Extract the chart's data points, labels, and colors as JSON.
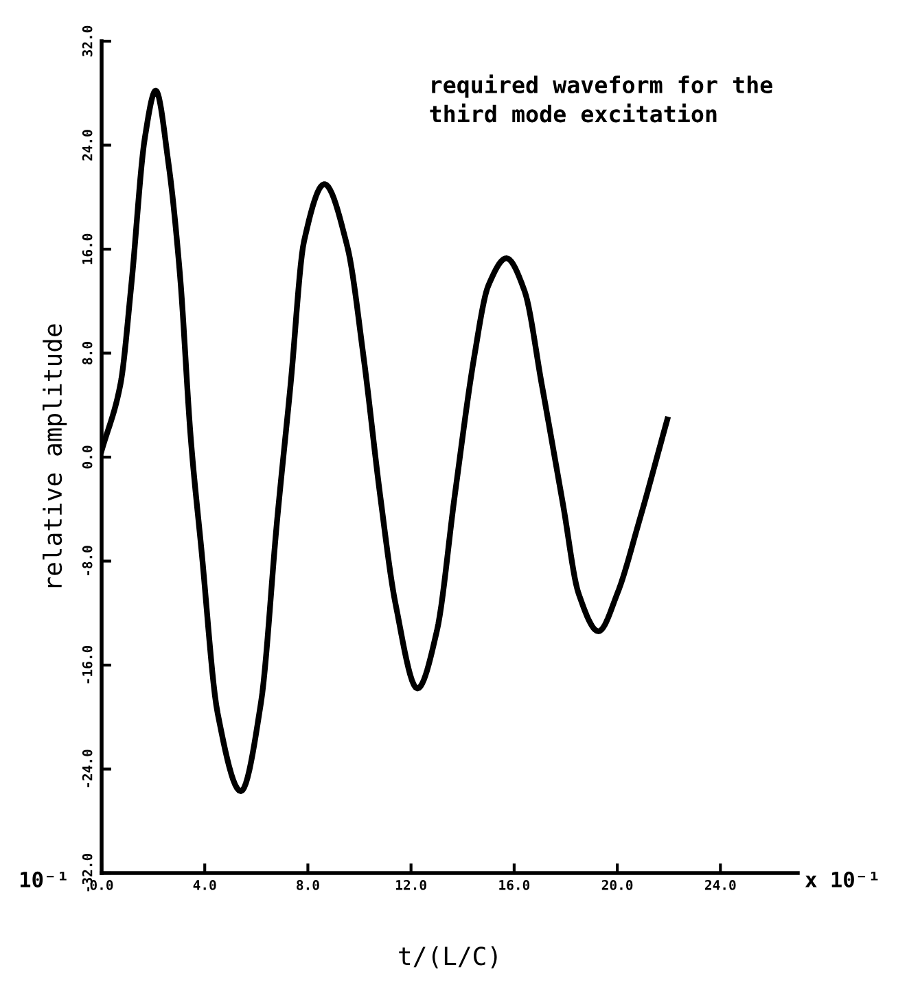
{
  "chart_data": {
    "type": "line",
    "xlabel": "t/(L/C)",
    "ylabel": "relative amplitude",
    "annotations": [
      "required waveform for the\nthird mode excitation",
      "x 10⁻¹",
      "10⁻¹"
    ],
    "x": [
      0,
      0.73,
      1.15,
      1.68,
      2.1,
      2.6,
      3.04,
      3.46,
      3.87,
      4.5,
      5.4,
      6.18,
      6.8,
      7.33,
      7.85,
      8.64,
      9.53,
      10.16,
      10.8,
      11.4,
      12.25,
      13.0,
      13.7,
      14.45,
      15.0,
      15.7,
      16.4,
      17.07,
      17.9,
      18.5,
      19.27,
      20.0,
      20.84,
      21.94
    ],
    "series": [
      {
        "color": "#000000",
        "values": [
          0.5,
          5.6,
          13.2,
          24.6,
          28.2,
          22.5,
          14,
          1.4,
          -7.1,
          -19.7,
          -25.7,
          -18.9,
          -5,
          5.6,
          16.6,
          21,
          16.2,
          7.7,
          -2.9,
          -11.3,
          -17.8,
          -13.4,
          -2.9,
          7.7,
          13.2,
          15.3,
          12.8,
          5.6,
          -3.7,
          -10.5,
          -13.4,
          -10.5,
          -5,
          2.9
        ]
      }
    ],
    "xlim": [
      0,
      27
    ],
    "ylim": [
      -32,
      32
    ],
    "xticks": [
      {
        "value": 0,
        "label": "0.0"
      },
      {
        "value": 4,
        "label": "4.0"
      },
      {
        "value": 8,
        "label": "8.0"
      },
      {
        "value": 12,
        "label": "12.0"
      },
      {
        "value": 16,
        "label": "16.0"
      },
      {
        "value": 20,
        "label": "20.0"
      },
      {
        "value": 24,
        "label": "24.0"
      }
    ],
    "yticks": [
      {
        "value": -32,
        "label": "-32.0"
      },
      {
        "value": -24,
        "label": "-24.0"
      },
      {
        "value": -16,
        "label": "-16.0"
      },
      {
        "value": -8,
        "label": "-8.0"
      },
      {
        "value": 0,
        "label": "0.0"
      },
      {
        "value": 8,
        "label": "8.0"
      },
      {
        "value": 16,
        "label": "16.0"
      },
      {
        "value": 24,
        "label": "24.0"
      },
      {
        "value": 32,
        "label": "32.0"
      }
    ],
    "grid": false,
    "marker": "none",
    "line_style": "solid"
  }
}
